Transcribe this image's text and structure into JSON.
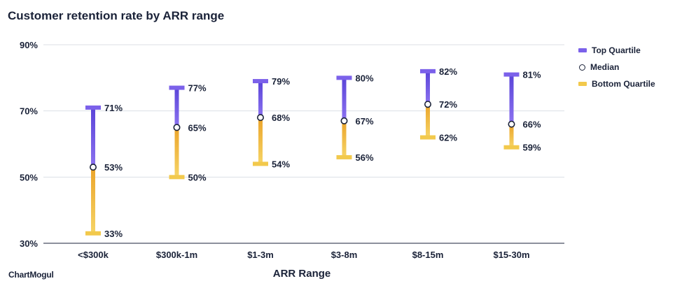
{
  "title": "Customer retention rate by ARR range",
  "brand": "ChartMogul",
  "colors": {
    "top_quartile": "#7b61ea",
    "top_quartile_dark": "#5a44d8",
    "bottom_quartile": "#f2c94c",
    "bottom_quartile_dark": "#eba42a",
    "median_stroke": "#1a2238",
    "grid": "#dcdfe6",
    "text": "#1a2238"
  },
  "legend": [
    {
      "label": "Top Quartile",
      "kind": "bar",
      "color": "#7b61ea"
    },
    {
      "label": "Median",
      "kind": "circle"
    },
    {
      "label": "Bottom Quartile",
      "kind": "bar",
      "color": "#f2c94c"
    }
  ],
  "chart_data": {
    "type": "range",
    "title": "Customer retention rate by ARR range",
    "xlabel": "ARR Range",
    "ylabel": "",
    "ylim": [
      30,
      90
    ],
    "yticks": [
      30,
      50,
      70,
      90
    ],
    "ytick_labels": [
      "30%",
      "50%",
      "70%",
      "90%"
    ],
    "categories": [
      "<$300k",
      "$300k-1m",
      "$1-3m",
      "$3-8m",
      "$8-15m",
      "$15-30m"
    ],
    "series": [
      {
        "name": "Top Quartile",
        "values": [
          71,
          77,
          79,
          80,
          82,
          81
        ],
        "labels": [
          "71%",
          "77%",
          "79%",
          "80%",
          "82%",
          "81%"
        ]
      },
      {
        "name": "Median",
        "values": [
          53,
          65,
          68,
          67,
          72,
          66
        ],
        "labels": [
          "53%",
          "65%",
          "68%",
          "67%",
          "72%",
          "66%"
        ]
      },
      {
        "name": "Bottom Quartile",
        "values": [
          33,
          50,
          54,
          56,
          62,
          59
        ],
        "labels": [
          "33%",
          "50%",
          "54%",
          "56%",
          "62%",
          "59%"
        ]
      }
    ],
    "grid": true,
    "legend_position": "right"
  }
}
